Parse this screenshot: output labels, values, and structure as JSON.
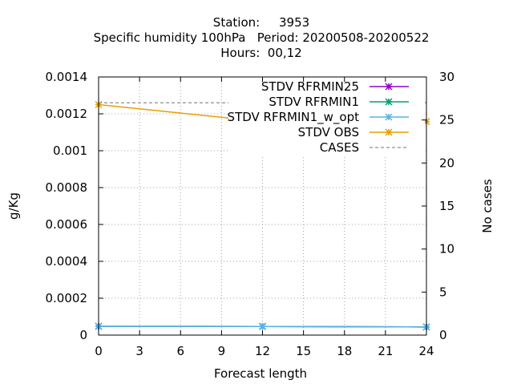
{
  "chart_data": {
    "type": "line",
    "title_lines": [
      "Station:     3953",
      "Specific humidity 100hPa   Period: 20200508-20200522",
      "Hours:  00,12"
    ],
    "xlabel": "Forecast length",
    "ylabel": "g/Kg",
    "y2label": "No cases",
    "x_ticks": [
      0,
      3,
      6,
      9,
      12,
      15,
      18,
      21,
      24
    ],
    "xlim": [
      0,
      24
    ],
    "y_ticks": [
      "0",
      "0.0002",
      "0.0004",
      "0.0006",
      "0.0008",
      "0.001",
      "0.0012",
      "0.0014"
    ],
    "y_tick_values": [
      0,
      0.0002,
      0.0004,
      0.0006,
      0.0008,
      0.001,
      0.0012,
      0.0014
    ],
    "ylim": [
      0,
      0.0014
    ],
    "y2_ticks": [
      "0",
      "5",
      "10",
      "15",
      "20",
      "25",
      "30"
    ],
    "y2_tick_values": [
      0,
      5,
      10,
      15,
      20,
      25,
      30
    ],
    "y2lim": [
      0,
      30
    ],
    "grid": true,
    "legend_position": "top-right",
    "series": [
      {
        "name": "STDV RFRMIN25",
        "color": "#9400d3",
        "axis": "y",
        "marker": "star",
        "x": [
          0,
          12,
          24
        ],
        "y": [
          4.75e-05,
          4.7e-05,
          4.4e-05
        ]
      },
      {
        "name": "STDV RFRMIN1",
        "color": "#009e73",
        "axis": "y",
        "marker": "star",
        "x": [
          0,
          12,
          24
        ],
        "y": [
          4.75e-05,
          4.7e-05,
          4.4e-05
        ]
      },
      {
        "name": "STDV RFRMIN1_w_opt",
        "color": "#56b4e9",
        "axis": "y",
        "marker": "star",
        "x": [
          0,
          12,
          24
        ],
        "y": [
          4.75e-05,
          4.7e-05,
          4.4e-05
        ]
      },
      {
        "name": "STDV OBS",
        "color": "#e69f00",
        "axis": "y",
        "marker": "star",
        "x": [
          0,
          12,
          24
        ],
        "y": [
          0.00125,
          0.001158,
          0.001158
        ]
      },
      {
        "name": "CASES",
        "color": "#a0a0a0",
        "axis": "y2",
        "dashed": true,
        "marker": "none",
        "x": [
          0,
          12,
          24
        ],
        "y": [
          27,
          27,
          27
        ]
      }
    ]
  }
}
